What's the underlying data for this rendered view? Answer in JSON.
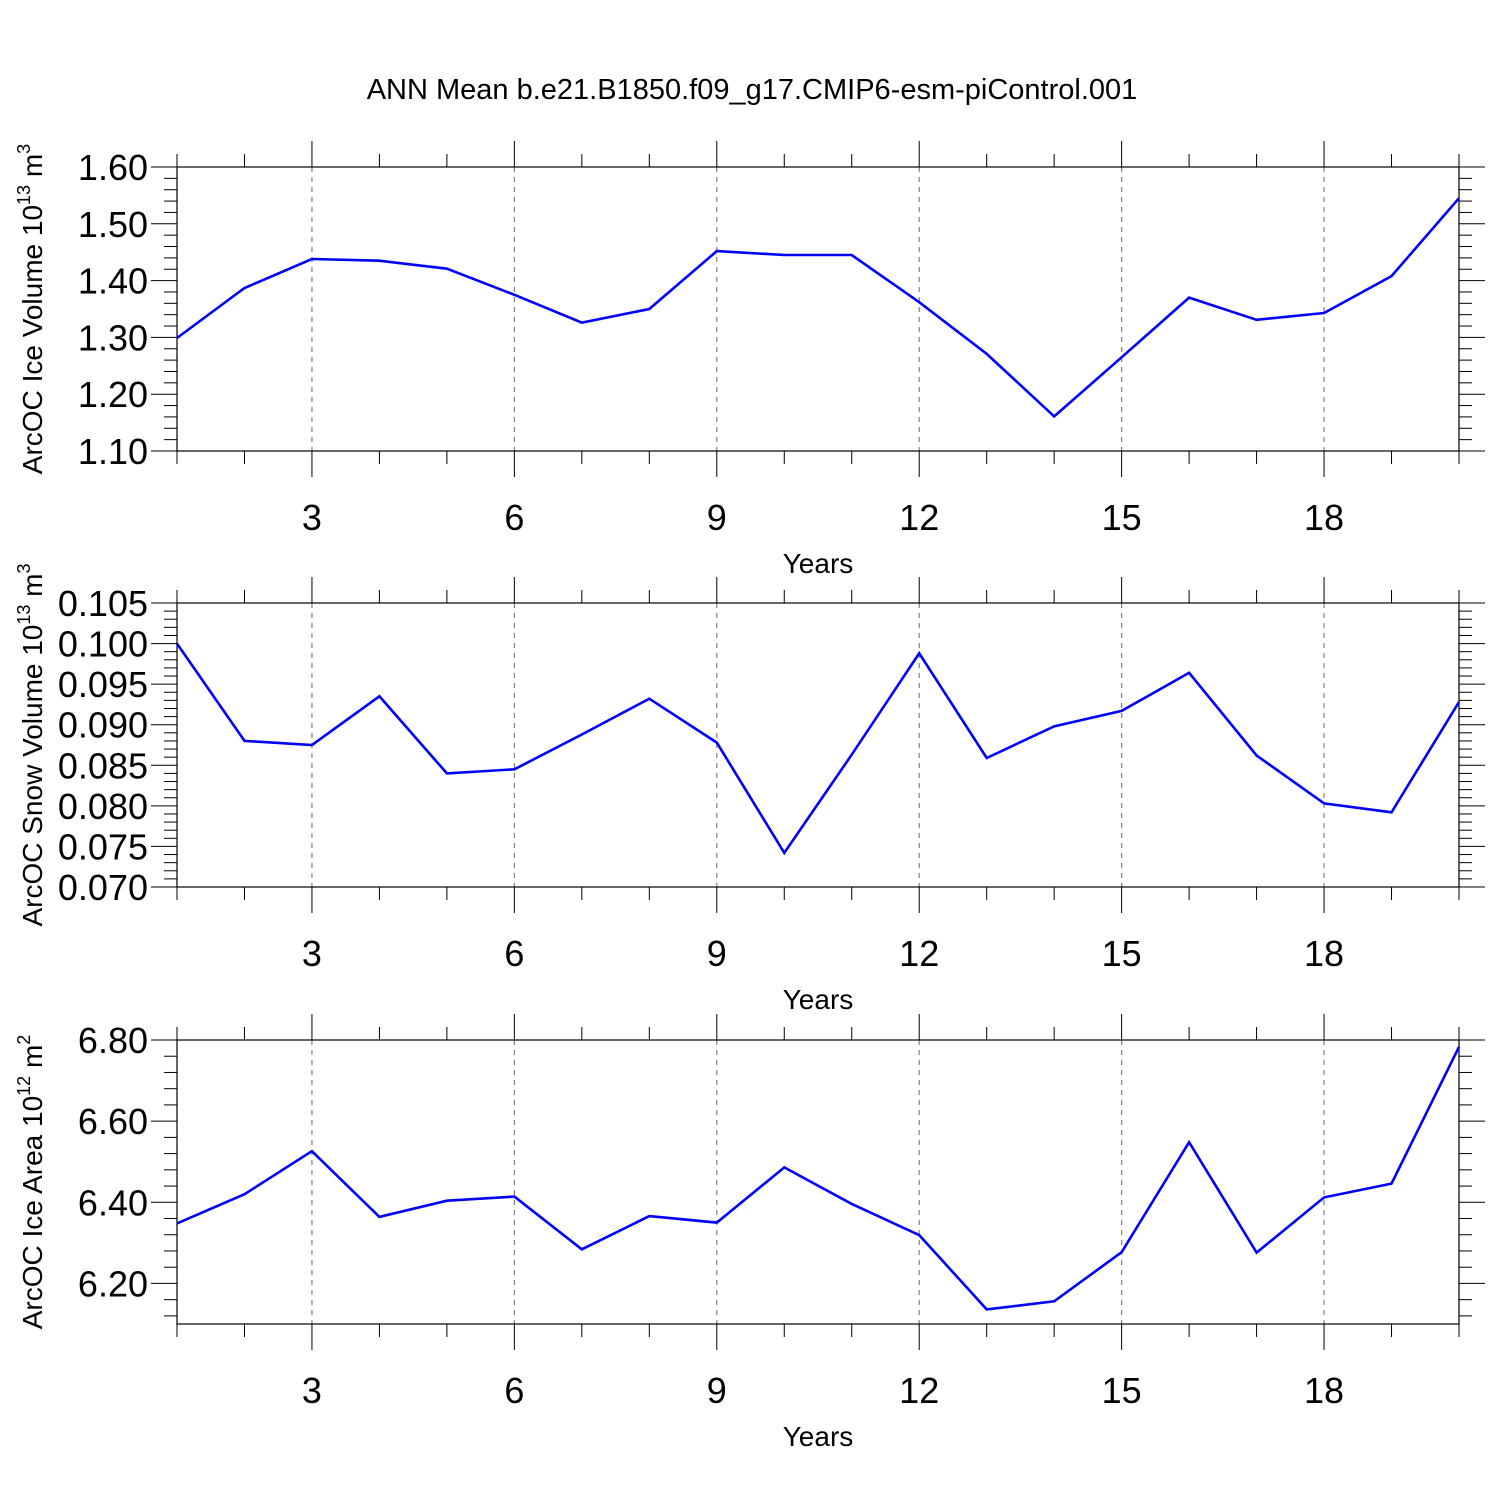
{
  "title": "ANN Mean b.e21.B1850.f09_g17.CMIP6-esm-piControl.001",
  "colors": {
    "line": "#0000ff",
    "axis": "#000000",
    "grid": "#808080"
  },
  "chart_data": [
    {
      "type": "line",
      "ylabel_main": "ArcOC Ice Volume 10",
      "ylabel_sup": "13",
      "ylabel_unit": " m",
      "ylabel_unit_sup": "3",
      "xlabel": "Years",
      "xlim": [
        1,
        20
      ],
      "ylim": [
        1.1,
        1.6
      ],
      "xticks": [
        3,
        6,
        9,
        12,
        15,
        18
      ],
      "xtick_labels": [
        "3",
        "6",
        "9",
        "12",
        "15",
        "18"
      ],
      "yticks": [
        1.1,
        1.2,
        1.3,
        1.4,
        1.5,
        1.6
      ],
      "ytick_labels": [
        "1.10",
        "1.20",
        "1.30",
        "1.40",
        "1.50",
        "1.60"
      ],
      "x": [
        1,
        2,
        3,
        4,
        5,
        6,
        7,
        8,
        9,
        10,
        11,
        12,
        13,
        14,
        15,
        16,
        17,
        18,
        19,
        20
      ],
      "values": [
        1.299,
        1.387,
        1.438,
        1.435,
        1.421,
        1.375,
        1.326,
        1.35,
        1.452,
        1.445,
        1.445,
        1.362,
        1.271,
        1.161,
        1.265,
        1.37,
        1.331,
        1.343,
        1.408,
        1.545
      ]
    },
    {
      "type": "line",
      "ylabel_main": "ArcOC Snow Volume 10",
      "ylabel_sup": "13",
      "ylabel_unit": " m",
      "ylabel_unit_sup": "3",
      "xlabel": "Years",
      "xlim": [
        1,
        20
      ],
      "ylim": [
        0.07,
        0.105
      ],
      "xticks": [
        3,
        6,
        9,
        12,
        15,
        18
      ],
      "xtick_labels": [
        "3",
        "6",
        "9",
        "12",
        "15",
        "18"
      ],
      "yticks": [
        0.07,
        0.075,
        0.08,
        0.085,
        0.09,
        0.095,
        0.1,
        0.105
      ],
      "ytick_labels": [
        "0.070",
        "0.075",
        "0.080",
        "0.085",
        "0.090",
        "0.095",
        "0.100",
        "0.105"
      ],
      "x": [
        1,
        2,
        3,
        4,
        5,
        6,
        7,
        8,
        9,
        10,
        11,
        12,
        13,
        14,
        15,
        16,
        17,
        18,
        19,
        20
      ],
      "values": [
        0.1,
        0.088,
        0.0875,
        0.0935,
        0.084,
        0.0845,
        0.0888,
        0.0932,
        0.0878,
        0.0742,
        0.0863,
        0.0988,
        0.0859,
        0.0898,
        0.0917,
        0.0964,
        0.0862,
        0.0803,
        0.0792,
        0.0928
      ]
    },
    {
      "type": "line",
      "ylabel_main": "ArcOC Ice Area 10",
      "ylabel_sup": "12",
      "ylabel_unit": " m",
      "ylabel_unit_sup": "2",
      "xlabel": "Years",
      "xlim": [
        1,
        20
      ],
      "ylim": [
        6.1,
        6.8
      ],
      "xticks": [
        3,
        6,
        9,
        12,
        15,
        18
      ],
      "xtick_labels": [
        "3",
        "6",
        "9",
        "12",
        "15",
        "18"
      ],
      "yticks": [
        6.2,
        6.4,
        6.6,
        6.8
      ],
      "ytick_labels": [
        "6.20",
        "6.40",
        "6.60",
        "6.80"
      ],
      "x": [
        1,
        2,
        3,
        4,
        5,
        6,
        7,
        8,
        9,
        10,
        11,
        12,
        13,
        14,
        15,
        16,
        17,
        18,
        19,
        20
      ],
      "values": [
        6.348,
        6.42,
        6.526,
        6.364,
        6.404,
        6.414,
        6.284,
        6.366,
        6.35,
        6.486,
        6.396,
        6.319,
        6.136,
        6.156,
        6.277,
        6.548,
        6.276,
        6.412,
        6.446,
        6.783
      ]
    }
  ]
}
